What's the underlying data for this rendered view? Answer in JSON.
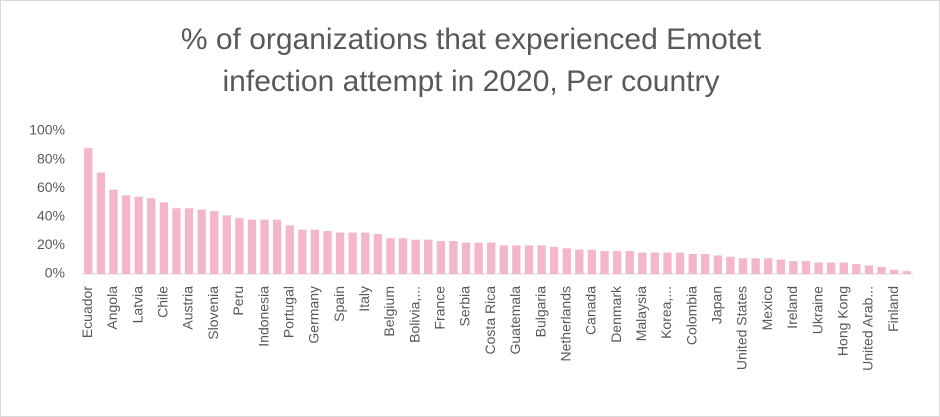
{
  "chart_data": {
    "type": "bar",
    "title": "% of organizations that experienced Emotet infection attempt in 2020, Per country",
    "categories": [
      "Ecuador",
      null,
      "Angola",
      null,
      "Latvia",
      null,
      "Chile",
      null,
      "Austria",
      null,
      "Slovenia",
      null,
      "Peru",
      null,
      "Indonesia",
      null,
      "Portugal",
      null,
      "Germany",
      null,
      "Spain",
      null,
      "Italy",
      null,
      "Belgium",
      null,
      "Bolivia,...",
      null,
      "France",
      null,
      "Serbia",
      null,
      "Costa Rica",
      null,
      "Guatemala",
      null,
      "Bulgaria",
      null,
      "Netherlands",
      null,
      "Canada",
      null,
      "Denmark",
      null,
      "Malaysia",
      null,
      "Korea,...",
      null,
      "Colombia",
      null,
      "Japan",
      null,
      "United States",
      null,
      "Mexico",
      null,
      "Ireland",
      null,
      "Ukraine",
      null,
      "Hong Kong",
      null,
      "United Arab...",
      null,
      "Finland",
      null
    ],
    "values": [
      88,
      71,
      59,
      55,
      54,
      53,
      50,
      46,
      46,
      45,
      44,
      41,
      39,
      38,
      38,
      38,
      34,
      31,
      31,
      30,
      29,
      29,
      29,
      28,
      25,
      25,
      24,
      24,
      23,
      23,
      22,
      22,
      22,
      20,
      20,
      20,
      20,
      19,
      18,
      17,
      17,
      16,
      16,
      16,
      15,
      15,
      15,
      15,
      14,
      14,
      13,
      12,
      11,
      11,
      11,
      10,
      9,
      9,
      8,
      8,
      8,
      7,
      6,
      5,
      3,
      2
    ],
    "color": "#f4b6c9",
    "ylim": [
      0,
      100
    ],
    "yticks": [
      {
        "value": 0,
        "label": "0%"
      },
      {
        "value": 20,
        "label": "20%"
      },
      {
        "value": 40,
        "label": "40%"
      },
      {
        "value": 60,
        "label": "60%"
      },
      {
        "value": 80,
        "label": "80%"
      },
      {
        "value": 100,
        "label": "100%"
      }
    ],
    "grid": false
  }
}
